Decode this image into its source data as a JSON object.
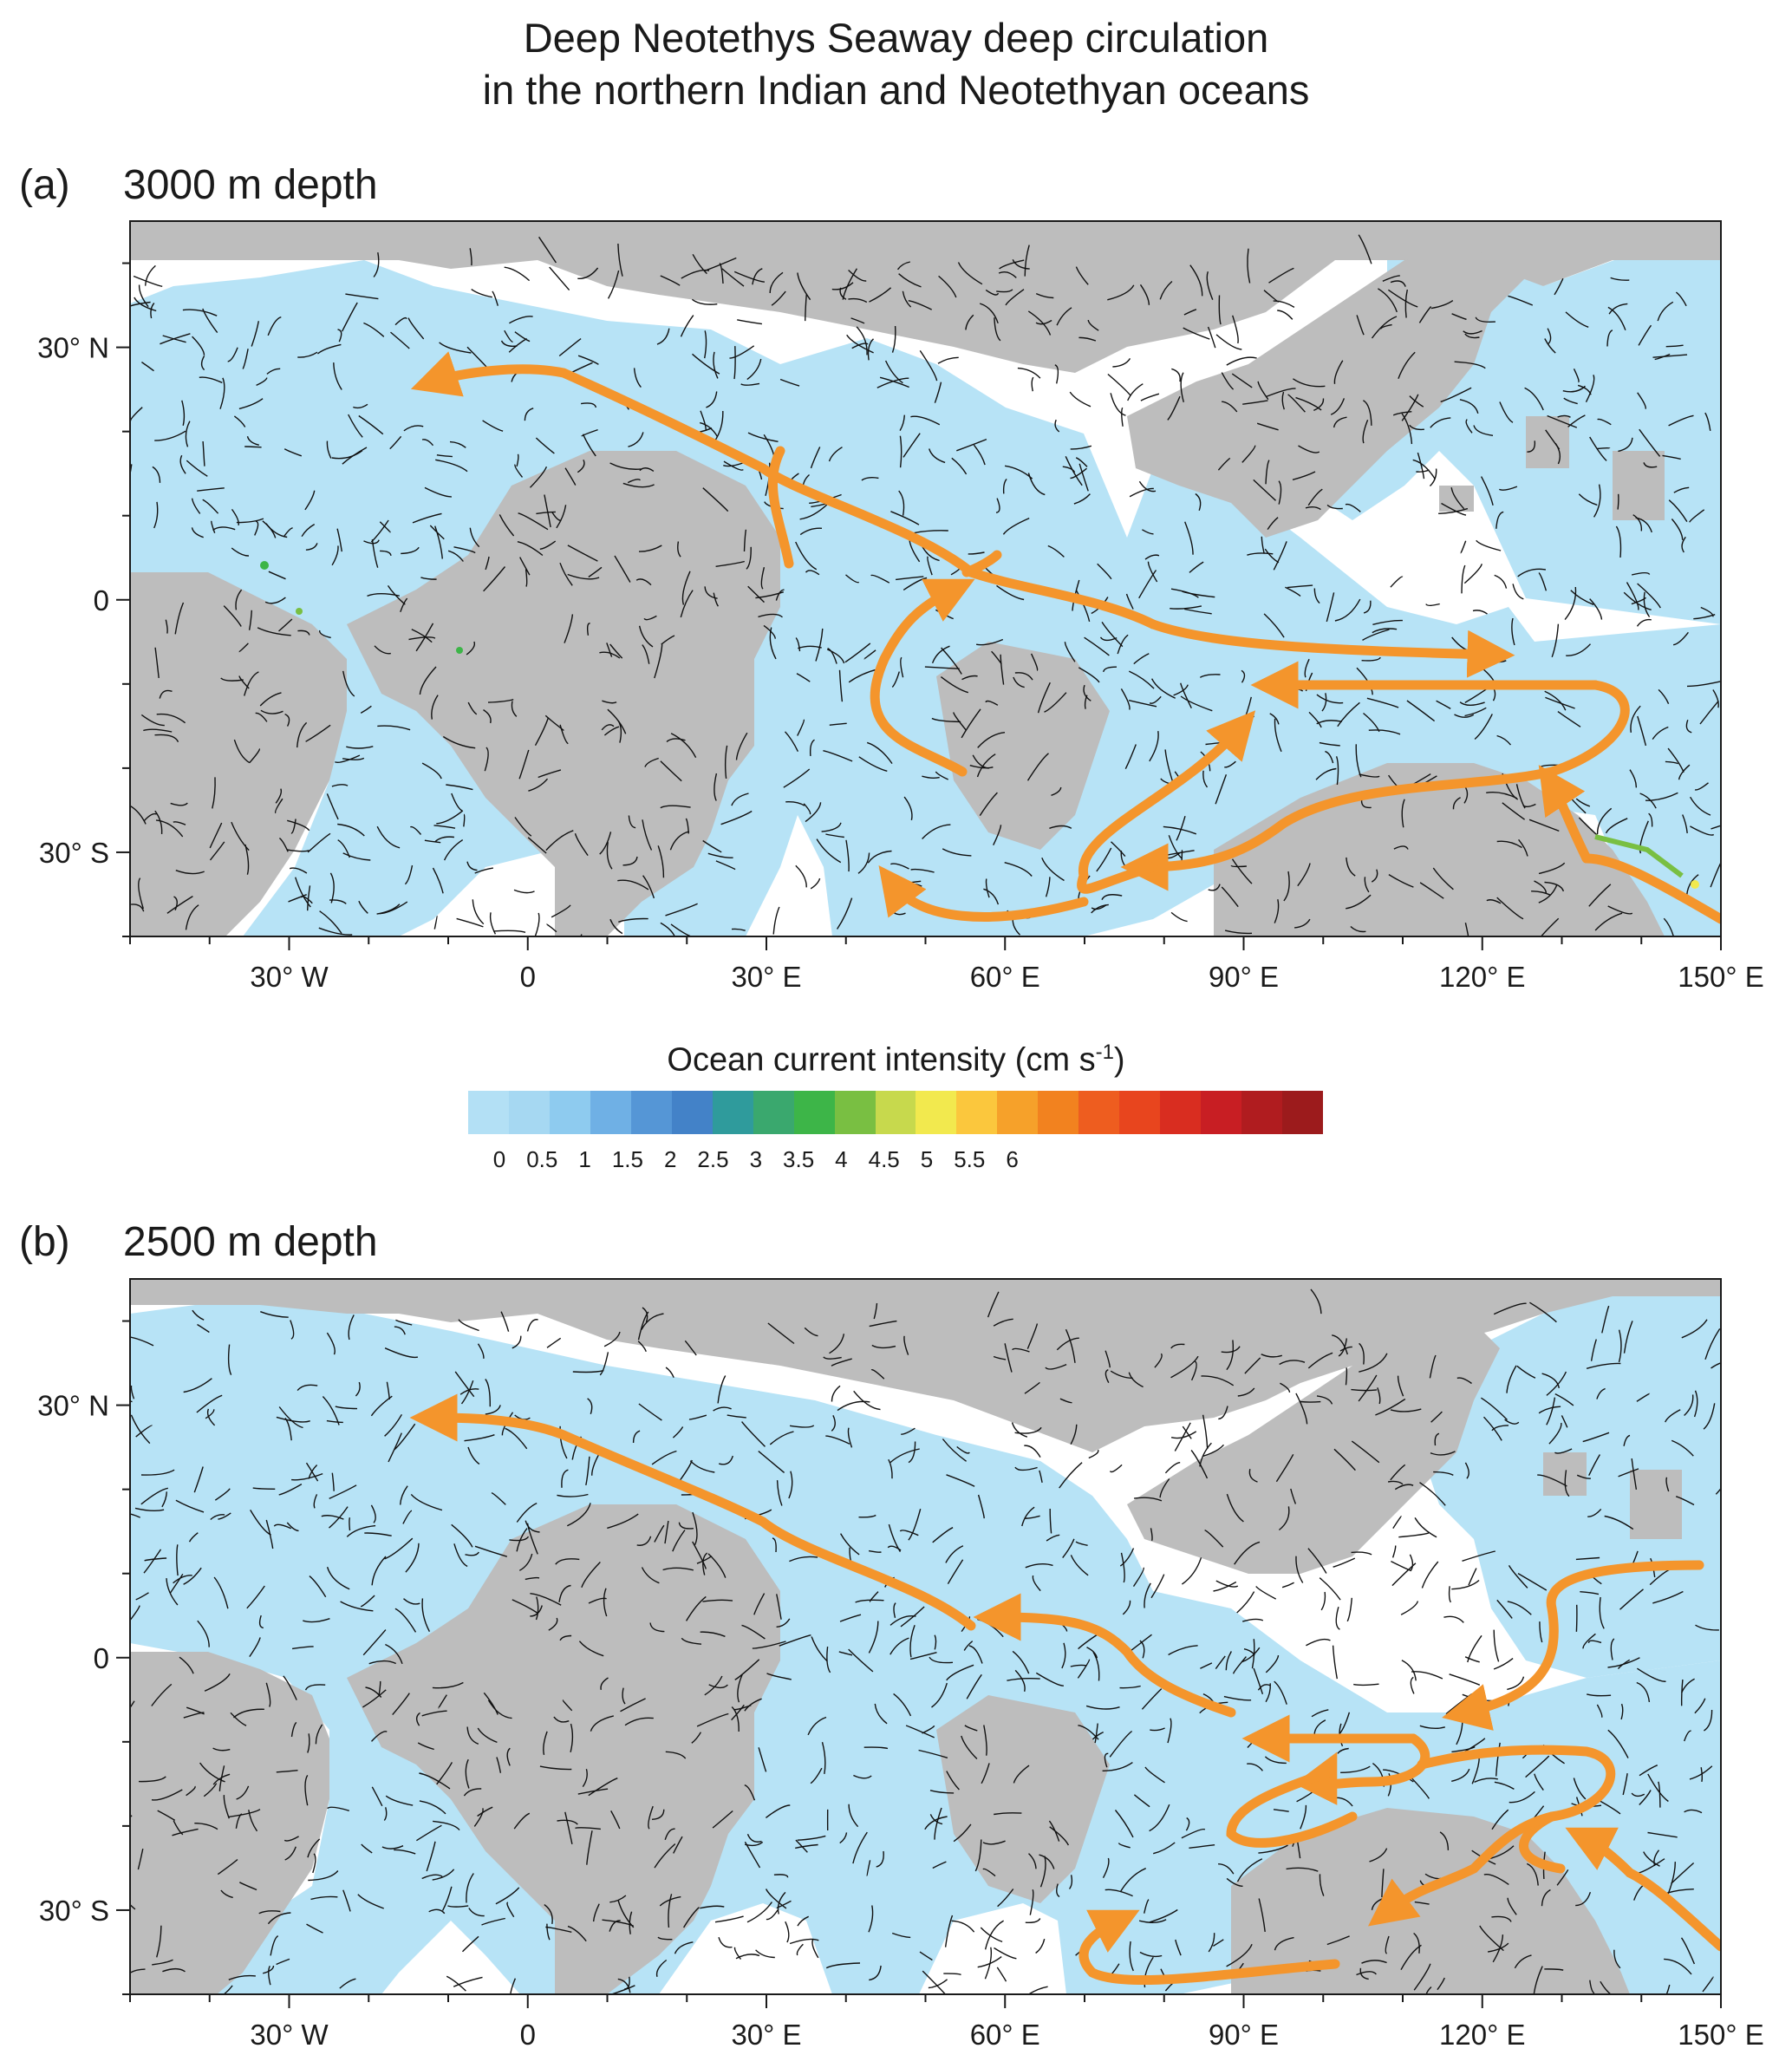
{
  "title": {
    "line1": "Deep Neotethys Seaway deep circulation",
    "line2": "in the northern Indian and Neotethyan oceans"
  },
  "panels": [
    {
      "tag": "(a)",
      "depth": "3000 m depth"
    },
    {
      "tag": "(b)",
      "depth": "2500 m depth"
    }
  ],
  "axes": {
    "x_tick_labels": [
      "30° W",
      "0",
      "30° E",
      "60° E",
      "90° E",
      "120° E",
      "150° E"
    ],
    "x_tick_values": [
      -30,
      0,
      30,
      60,
      90,
      120,
      150
    ],
    "y_tick_labels": [
      "30° N",
      "0",
      "30° S"
    ],
    "y_tick_values": [
      30,
      0,
      -30
    ],
    "lon_range": [
      -50,
      150
    ],
    "lat_range": [
      -40,
      45
    ]
  },
  "legend": {
    "title": "Ocean current intensity (cm s",
    "title_superscript": "-1",
    "title_close": ")",
    "tick_labels": [
      "0",
      "0.5",
      "1",
      "1.5",
      "2",
      "2.5",
      "3",
      "3.5",
      "4",
      "4.5",
      "5",
      "5.5",
      "6"
    ],
    "colors": [
      "#b3e0f5",
      "#a6d8f2",
      "#8ecbef",
      "#6fb0e5",
      "#5596d6",
      "#4382c8",
      "#2f9b9c",
      "#3aa86e",
      "#3db548",
      "#79bf42",
      "#c7d94d",
      "#f2e94e",
      "#fbc73d",
      "#f6a12a",
      "#f2821f",
      "#ee5d1f",
      "#e8451e",
      "#d92d20",
      "#c81e23",
      "#b01c1f",
      "#9c1b1c"
    ]
  },
  "colors": {
    "land": "#bdbdbd",
    "ocean_current": "#b7e3f6",
    "flow_arrow": "#f4952c",
    "streamline": "#111111"
  }
}
